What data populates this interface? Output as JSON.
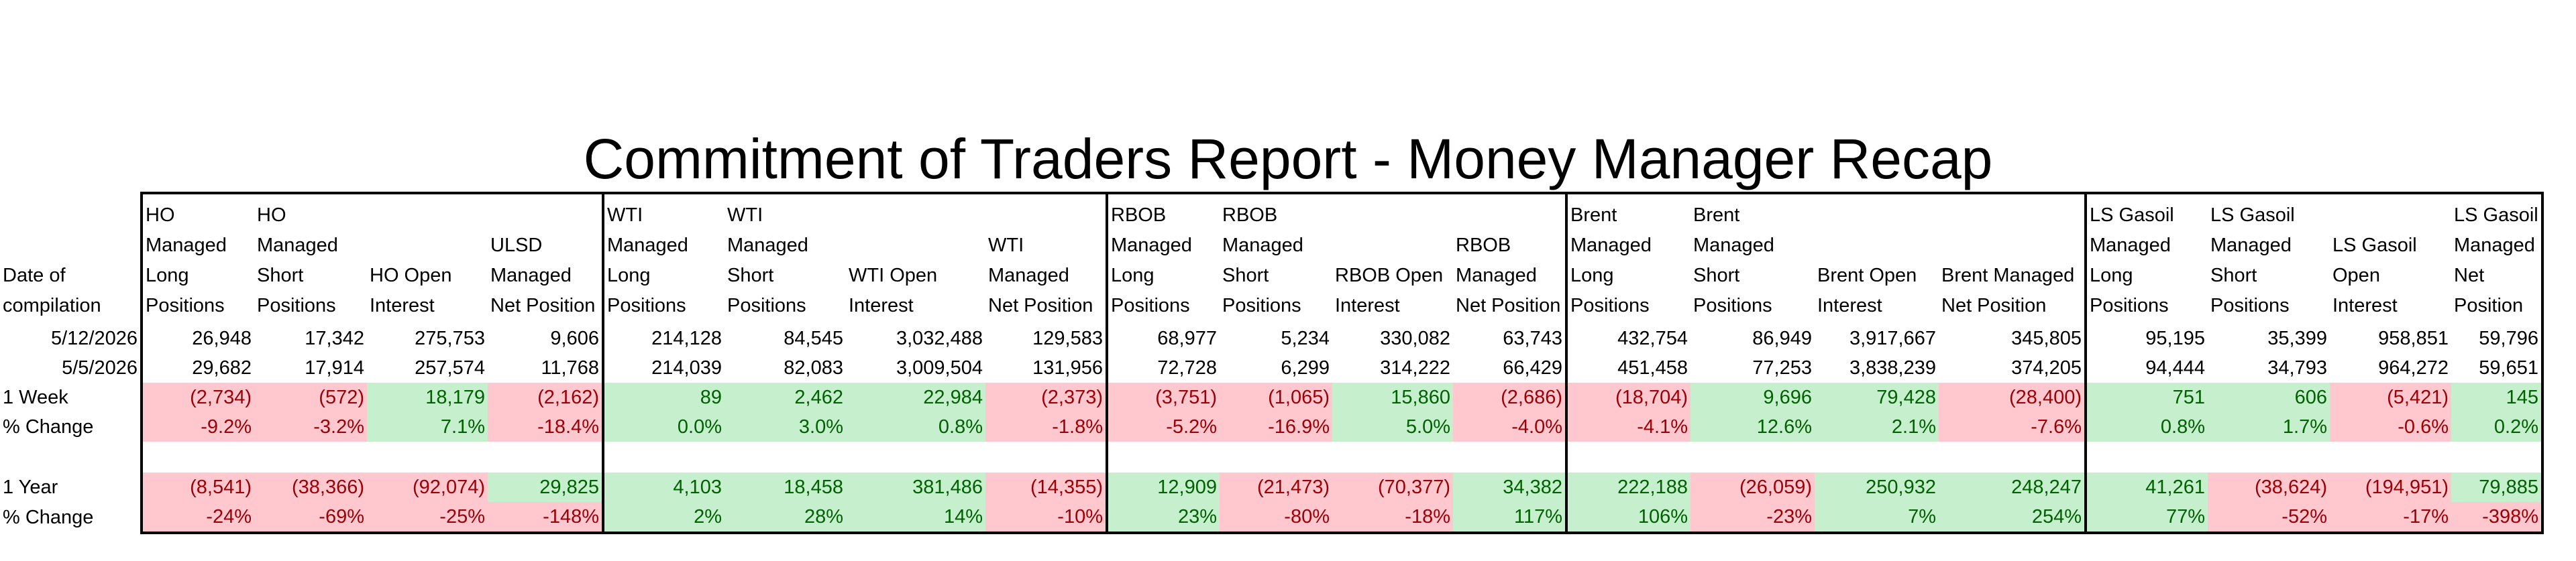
{
  "title": "Commitment of Traders Report - Money Manager Recap",
  "colors": {
    "positive_bg": "#c6efce",
    "positive_text": "#006100",
    "negative_bg": "#ffc7ce",
    "negative_text": "#9c0006"
  },
  "header": {
    "date": "Date of compilation",
    "cols": [
      "HO Managed Long Positions",
      "HO Managed Short Positions",
      "HO Open Interest",
      "ULSD Managed Net Position",
      "WTI Managed Long Positions",
      "WTI Managed Short Positions",
      "WTI Open Interest",
      "WTI Managed Net Position",
      "RBOB Managed Long Positions",
      "RBOB Managed Short Positions",
      "RBOB Open Interest",
      "RBOB Managed Net Position",
      "Brent Managed Long Positions",
      "Brent Managed Short Positions",
      "Brent Open Interest",
      "Brent Managed Net Position",
      "LS Gasoil Managed Long Positions",
      "LS Gasoil Managed Short Positions",
      "LS Gasoil Open Interest",
      "LS Gasoil Managed Net Position"
    ]
  },
  "rows": {
    "r1": {
      "label": "5/12/2026",
      "values": [
        "26,948",
        "17,342",
        "275,753",
        "9,606",
        "214,128",
        "84,545",
        "3,032,488",
        "129,583",
        "68,977",
        "5,234",
        "330,082",
        "63,743",
        "432,754",
        "86,949",
        "3,917,667",
        "345,805",
        "95,195",
        "35,399",
        "958,851",
        "59,796"
      ]
    },
    "r2": {
      "label": "5/5/2026",
      "values": [
        "29,682",
        "17,914",
        "257,574",
        "11,768",
        "214,039",
        "82,083",
        "3,009,504",
        "131,956",
        "72,728",
        "6,299",
        "314,222",
        "66,429",
        "451,458",
        "77,253",
        "3,838,239",
        "374,205",
        "94,444",
        "34,793",
        "964,272",
        "59,651"
      ]
    },
    "week": {
      "label": "1 Week",
      "values": [
        "(2,734)",
        "(572)",
        "18,179",
        "(2,162)",
        "89",
        "2,462",
        "22,984",
        "(2,373)",
        "(3,751)",
        "(1,065)",
        "15,860",
        "(2,686)",
        "(18,704)",
        "9,696",
        "79,428",
        "(28,400)",
        "751",
        "606",
        "(5,421)",
        "145"
      ]
    },
    "week_pct": {
      "label": "% Change",
      "values": [
        "-9.2%",
        "-3.2%",
        "7.1%",
        "-18.4%",
        "0.0%",
        "3.0%",
        "0.8%",
        "-1.8%",
        "-5.2%",
        "-16.9%",
        "5.0%",
        "-4.0%",
        "-4.1%",
        "12.6%",
        "2.1%",
        "-7.6%",
        "0.8%",
        "1.7%",
        "-0.6%",
        "0.2%"
      ]
    },
    "year": {
      "label": "1 Year",
      "values": [
        "(8,541)",
        "(38,366)",
        "(92,074)",
        "29,825",
        "4,103",
        "18,458",
        "381,486",
        "(14,355)",
        "12,909",
        "(21,473)",
        "(70,377)",
        "34,382",
        "222,188",
        "(26,059)",
        "250,932",
        "248,247",
        "41,261",
        "(38,624)",
        "(194,951)",
        "79,885"
      ]
    },
    "year_pct": {
      "label": "% Change",
      "values": [
        "-24%",
        "-69%",
        "-25%",
        "-148%",
        "2%",
        "28%",
        "14%",
        "-10%",
        "23%",
        "-80%",
        "-18%",
        "117%",
        "106%",
        "-23%",
        "7%",
        "254%",
        "77%",
        "-52%",
        "-17%",
        "-398%"
      ]
    }
  }
}
